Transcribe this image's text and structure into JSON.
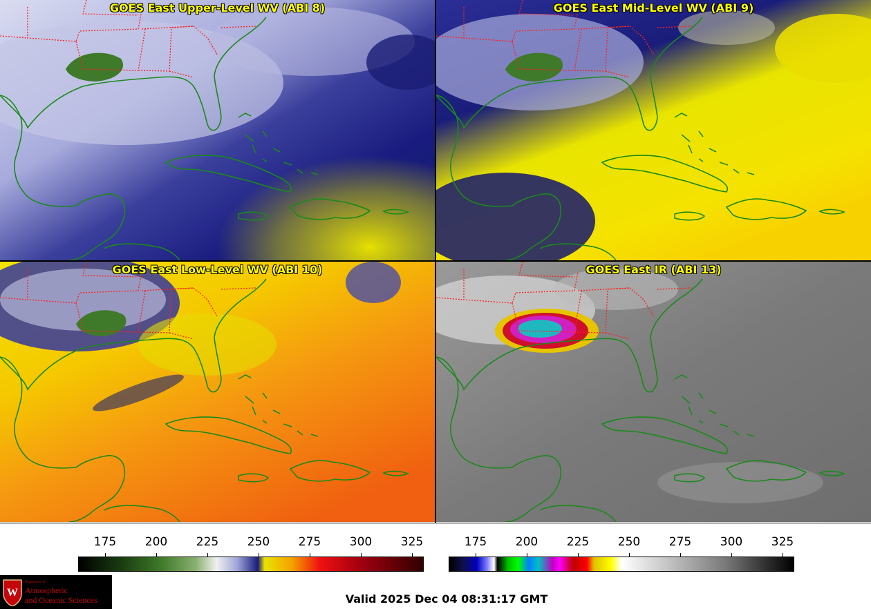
{
  "panels": {
    "p1": {
      "title": "GOES East Upper-Level WV (ABI 8)"
    },
    "p2": {
      "title": "GOES East Mid-Level WV (ABI 9)"
    },
    "p3": {
      "title": "GOES East Low-Level WV (ABI 10)"
    },
    "p4": {
      "title": "GOES East IR (ABI 13)"
    }
  },
  "colorbars": {
    "wv": {
      "ticks": [
        "175",
        "200",
        "225",
        "250",
        "275",
        "300",
        "325"
      ]
    },
    "ir": {
      "ticks": [
        "175",
        "200",
        "225",
        "250",
        "275",
        "300",
        "325"
      ]
    }
  },
  "logo": {
    "dept": "Department of",
    "line1": "Atmospheric",
    "line2": "and Oceanic Sciences",
    "seal_letter": "W"
  },
  "footer": {
    "valid": "Valid 2025 Dec 04 08:31:17 GMT"
  },
  "colors": {
    "title": "#ffff00",
    "coast": "#1a8a1a",
    "border": "#ff2020",
    "logo_red": "#c5050c"
  }
}
